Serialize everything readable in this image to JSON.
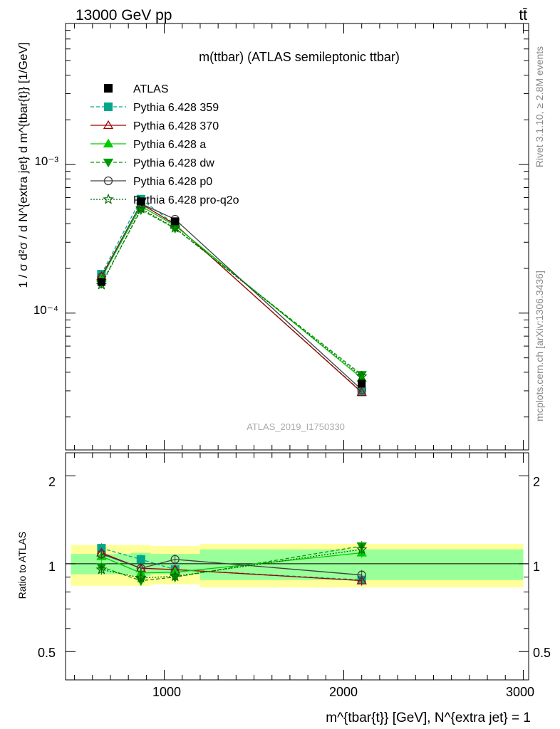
{
  "header": {
    "left": "13000 GeV pp",
    "right": "tt̄"
  },
  "top_panel": {
    "title": "m(ttbar) (ATLAS semileptonic ttbar)",
    "ylabel": "1 / σ d²σ / d N^{extra jet} d m^{tbar{t}} [1/GeV]",
    "analysis_id": "ATLAS_2019_I1750330",
    "ytick_labels": [
      "10⁻³",
      "10⁻⁴"
    ]
  },
  "bottom_panel": {
    "ylabel": "Ratio to ATLAS",
    "ytick_labels": [
      "2",
      "1",
      "0.5"
    ]
  },
  "x_axis": {
    "label": "m^{tbar{t}} [GeV], N^{extra jet} = 1",
    "tick_labels": [
      "1000",
      "2000",
      "3000"
    ]
  },
  "side_labels": {
    "rivet": "Rivet 3.1.10, ≥ 2.8M events",
    "mcplots": "mcplots.cern.ch [arXiv:1306.3436]"
  },
  "chart_data": {
    "type": "line",
    "title": "m(ttbar) (ATLAS semileptonic ttbar)",
    "xlabel": "m^{tbar{t}} [GeV], N^{extra jet} = 1",
    "ylabel": "1 / σ d²σ / d N^{extra jet} d m^{tbar{t}} [1/GeV]",
    "xlim": [
      450,
      3030
    ],
    "ylim": [
      1.2e-05,
      0.0089
    ],
    "ylog": true,
    "ratio_ylim": [
      0.4,
      2.4
    ],
    "ratio_ylog": true,
    "ratio_ylabel": "Ratio to ATLAS",
    "legend_position": "top-left",
    "x": [
      650,
      870,
      1060,
      2100
    ],
    "bins": [
      [
        480,
        815
      ],
      [
        815,
        925
      ],
      [
        925,
        1200
      ],
      [
        1200,
        3000
      ]
    ],
    "data": {
      "name": "ATLAS",
      "values": [
        0.000162,
        0.000565,
        0.000415,
        3.35e-05
      ],
      "band_stat": [
        0.08,
        0.09,
        0.08,
        0.12
      ],
      "band_total": [
        0.16,
        0.16,
        0.15,
        0.17
      ]
    },
    "series": [
      {
        "name": "Pythia 6.428 359",
        "color": "#00a88a",
        "dash": "5,3",
        "marker": "square-filled",
        "values": [
          0.000183,
          0.000585,
          0.000395,
          2.95e-05
        ],
        "ratio": [
          1.13,
          1.035,
          0.955,
          0.88
        ]
      },
      {
        "name": "Pythia 6.428 370",
        "color": "#a00000",
        "dash": "",
        "marker": "triangle-open",
        "values": [
          0.000177,
          0.000545,
          0.000395,
          2.93e-05
        ],
        "ratio": [
          1.09,
          0.965,
          0.955,
          0.875
        ]
      },
      {
        "name": "Pythia 6.428 a",
        "color": "#00cc00",
        "dash": "",
        "marker": "triangle-filled",
        "values": [
          0.000172,
          0.000525,
          0.000388,
          3.65e-05
        ],
        "ratio": [
          1.06,
          0.93,
          0.935,
          1.09
        ]
      },
      {
        "name": "Pythia 6.428 dw",
        "color": "#009900",
        "dash": "5,3",
        "marker": "triangle-down-filled",
        "values": [
          0.000158,
          0.000495,
          0.000372,
          3.85e-05
        ],
        "ratio": [
          0.975,
          0.875,
          0.9,
          1.15
        ]
      },
      {
        "name": "Pythia 6.428 p0",
        "color": "#404040",
        "dash": "",
        "marker": "circle-open",
        "values": [
          0.000175,
          0.000545,
          0.000428,
          3.05e-05
        ],
        "ratio": [
          1.08,
          0.965,
          1.035,
          0.915
        ]
      },
      {
        "name": "Pythia 6.428 pro-q2o",
        "color": "#006600",
        "dash": "2,2",
        "marker": "star-open",
        "values": [
          0.000155,
          0.000505,
          0.000375,
          3.75e-05
        ],
        "ratio": [
          0.955,
          0.895,
          0.905,
          1.12
        ]
      }
    ]
  }
}
